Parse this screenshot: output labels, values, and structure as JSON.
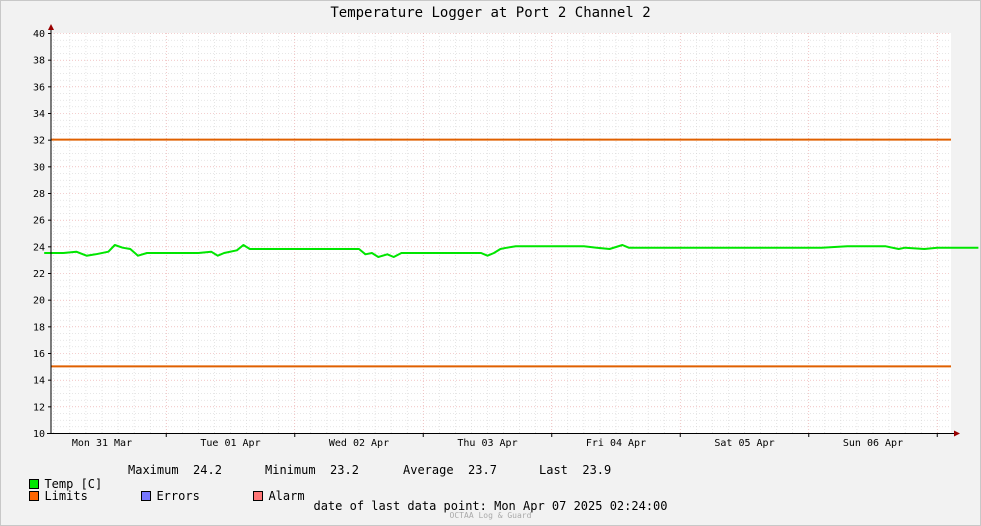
{
  "title": "Temperature Logger at Port 2 Channel 2",
  "chart_data": {
    "type": "line",
    "x_labels": [
      "Mon 31 Mar",
      "Tue 01 Apr",
      "Wed 02 Apr",
      "Thu 03 Apr",
      "Fri 04 Apr",
      "Sat 05 Apr",
      "Sun 06 Apr"
    ],
    "y_ticks": [
      "10",
      "12",
      "14",
      "16",
      "18",
      "20",
      "22",
      "24",
      "26",
      "28",
      "30",
      "32",
      "34",
      "36",
      "38",
      "40"
    ],
    "ylim": [
      10,
      40
    ],
    "x_range_days": [
      -0.45,
      6.9
    ],
    "grid": true,
    "limits": [
      32,
      15
    ],
    "series": [
      {
        "name": "Temp [C]",
        "color": "#00e600",
        "points": [
          [
            -0.45,
            23.5
          ],
          [
            -0.3,
            23.5
          ],
          [
            -0.2,
            23.6
          ],
          [
            -0.12,
            23.3
          ],
          [
            -0.05,
            23.4
          ],
          [
            0.05,
            23.6
          ],
          [
            0.1,
            24.1
          ],
          [
            0.16,
            23.9
          ],
          [
            0.22,
            23.8
          ],
          [
            0.28,
            23.3
          ],
          [
            0.35,
            23.5
          ],
          [
            0.5,
            23.5
          ],
          [
            0.65,
            23.5
          ],
          [
            0.75,
            23.5
          ],
          [
            0.85,
            23.6
          ],
          [
            0.9,
            23.3
          ],
          [
            0.95,
            23.5
          ],
          [
            1.05,
            23.7
          ],
          [
            1.1,
            24.1
          ],
          [
            1.15,
            23.8
          ],
          [
            1.22,
            23.8
          ],
          [
            1.4,
            23.8
          ],
          [
            1.6,
            23.8
          ],
          [
            1.85,
            23.8
          ],
          [
            2.0,
            23.8
          ],
          [
            2.05,
            23.4
          ],
          [
            2.1,
            23.5
          ],
          [
            2.15,
            23.2
          ],
          [
            2.22,
            23.4
          ],
          [
            2.27,
            23.2
          ],
          [
            2.33,
            23.5
          ],
          [
            2.5,
            23.5
          ],
          [
            2.7,
            23.5
          ],
          [
            2.85,
            23.5
          ],
          [
            2.95,
            23.5
          ],
          [
            3.0,
            23.3
          ],
          [
            3.05,
            23.5
          ],
          [
            3.1,
            23.8
          ],
          [
            3.15,
            23.9
          ],
          [
            3.22,
            24.0
          ],
          [
            3.4,
            24.0
          ],
          [
            3.55,
            24.0
          ],
          [
            3.75,
            24.0
          ],
          [
            3.85,
            23.9
          ],
          [
            3.95,
            23.8
          ],
          [
            4.05,
            24.1
          ],
          [
            4.1,
            23.9
          ],
          [
            4.2,
            23.9
          ],
          [
            4.4,
            23.9
          ],
          [
            4.6,
            23.9
          ],
          [
            4.8,
            23.9
          ],
          [
            5.0,
            23.9
          ],
          [
            5.2,
            23.9
          ],
          [
            5.4,
            23.9
          ],
          [
            5.6,
            23.9
          ],
          [
            5.8,
            24.0
          ],
          [
            6.0,
            24.0
          ],
          [
            6.1,
            24.0
          ],
          [
            6.2,
            23.8
          ],
          [
            6.25,
            23.9
          ],
          [
            6.4,
            23.8
          ],
          [
            6.5,
            23.9
          ],
          [
            6.7,
            23.9
          ],
          [
            6.82,
            23.9
          ]
        ]
      }
    ],
    "stats": {
      "maximum_label": "Maximum",
      "maximum": "24.2",
      "minimum_label": "Minimum",
      "minimum": "23.2",
      "average_label": "Average",
      "average": "23.7",
      "last_label": "Last",
      "last": "23.9"
    },
    "legend": [
      {
        "label": "Temp [C]",
        "color": "#00e600"
      },
      {
        "label": "Limits",
        "color": "#ff6600"
      },
      {
        "label": "Errors",
        "color": "#7777ff"
      },
      {
        "label": "Alarm",
        "color": "#ff7777"
      }
    ],
    "colors": {
      "limit": "#e06000",
      "grid_major": "#e8a0a0",
      "grid_minor": "#cccccc",
      "axis": "#000000",
      "arrow": "#990000"
    }
  },
  "footer": {
    "label": "date of last data point:",
    "value": "Mon Apr 07 2025 02:24:00"
  },
  "brand": "OCTAA Log & Guard"
}
